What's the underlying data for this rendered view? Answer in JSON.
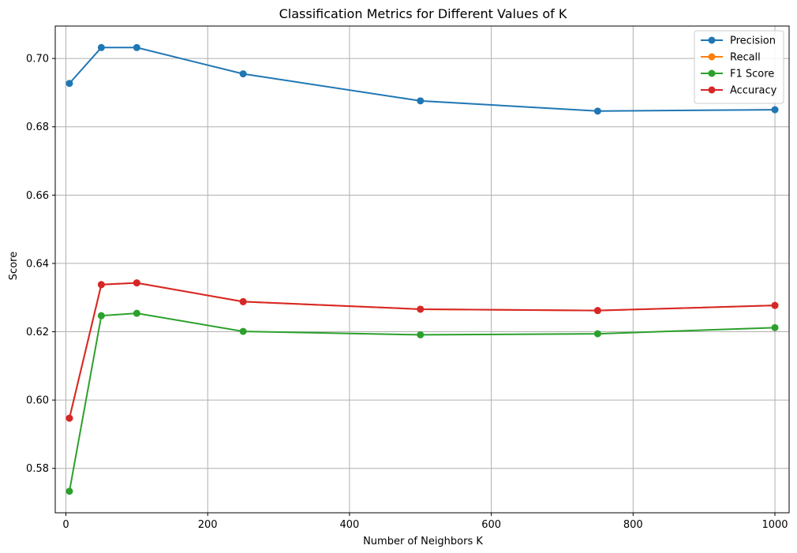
{
  "chart_data": {
    "type": "line",
    "title": "Classification Metrics for Different Values of K",
    "xlabel": "Number of Neighbors K",
    "ylabel": "Score",
    "x": [
      5,
      50,
      100,
      250,
      500,
      750,
      1000
    ],
    "xlim": [
      -15,
      1020
    ],
    "ylim": [
      0.567,
      0.7095
    ],
    "xticks": [
      0,
      200,
      400,
      600,
      800,
      1000
    ],
    "xtick_labels": [
      "0",
      "200",
      "400",
      "600",
      "800",
      "1000"
    ],
    "yticks": [
      0.58,
      0.6,
      0.62,
      0.64,
      0.66,
      0.68,
      0.7
    ],
    "ytick_labels": [
      "0.58",
      "0.60",
      "0.62",
      "0.64",
      "0.66",
      "0.68",
      "0.70"
    ],
    "grid": true,
    "legend_position": "top-right",
    "series": [
      {
        "name": "Precision",
        "color": "#1f77b4",
        "values": [
          0.6927,
          0.7032,
          0.7032,
          0.6955,
          0.6876,
          0.6846,
          0.685
        ]
      },
      {
        "name": "Recall",
        "color": "#ff7f0e",
        "values": [
          0.5947,
          0.6338,
          0.6343,
          0.6288,
          0.6266,
          0.6262,
          0.6277
        ]
      },
      {
        "name": "F1 Score",
        "color": "#2ca02c",
        "values": [
          0.5733,
          0.6247,
          0.6254,
          0.6201,
          0.6191,
          0.6194,
          0.6212
        ]
      },
      {
        "name": "Accuracy",
        "color": "#d62728",
        "values": [
          0.5947,
          0.6338,
          0.6343,
          0.6288,
          0.6266,
          0.6262,
          0.6277
        ]
      }
    ]
  }
}
